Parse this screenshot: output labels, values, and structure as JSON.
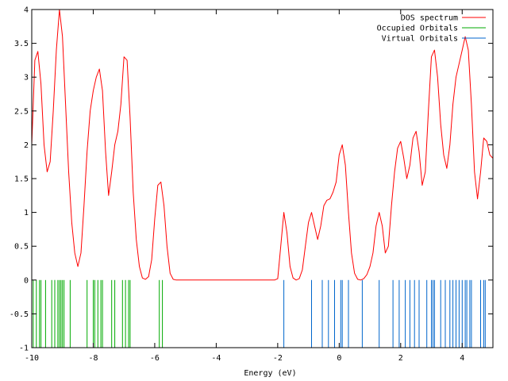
{
  "chart_data": {
    "type": "line",
    "title": "",
    "xlabel": "Energy (eV)",
    "ylabel": "",
    "xlim": [
      -10,
      5
    ],
    "ylim": [
      -1,
      4
    ],
    "grid": false,
    "legend_position": "top-right",
    "x_ticks": [
      -10,
      -8,
      -6,
      -4,
      -2,
      0,
      2,
      4
    ],
    "x_tick_labels": [
      "-10",
      "-8",
      "-6",
      "-4",
      "-2",
      "0",
      "2",
      "4"
    ],
    "y_ticks": [
      -1,
      -0.5,
      0,
      0.5,
      1,
      1.5,
      2,
      2.5,
      3,
      3.5,
      4
    ],
    "y_tick_labels": [
      "-1",
      "-0.5",
      "0",
      "0.5",
      "1",
      "1.5",
      "2",
      "2.5",
      "3",
      "3.5",
      "4"
    ],
    "series": [
      {
        "name": "DOS spectrum",
        "kind": "curve",
        "color": "#ff0000",
        "points": [
          [
            -10.0,
            2.0
          ],
          [
            -9.9,
            3.25
          ],
          [
            -9.8,
            3.38
          ],
          [
            -9.7,
            2.9
          ],
          [
            -9.6,
            2.0
          ],
          [
            -9.5,
            1.6
          ],
          [
            -9.4,
            1.75
          ],
          [
            -9.3,
            2.5
          ],
          [
            -9.2,
            3.4
          ],
          [
            -9.1,
            4.0
          ],
          [
            -9.0,
            3.6
          ],
          [
            -8.9,
            2.6
          ],
          [
            -8.8,
            1.6
          ],
          [
            -8.7,
            0.85
          ],
          [
            -8.6,
            0.4
          ],
          [
            -8.5,
            0.2
          ],
          [
            -8.4,
            0.4
          ],
          [
            -8.3,
            1.1
          ],
          [
            -8.2,
            1.9
          ],
          [
            -8.1,
            2.5
          ],
          [
            -8.0,
            2.8
          ],
          [
            -7.9,
            3.0
          ],
          [
            -7.8,
            3.12
          ],
          [
            -7.7,
            2.8
          ],
          [
            -7.6,
            1.9
          ],
          [
            -7.5,
            1.25
          ],
          [
            -7.4,
            1.6
          ],
          [
            -7.3,
            2.0
          ],
          [
            -7.2,
            2.2
          ],
          [
            -7.1,
            2.6
          ],
          [
            -7.0,
            3.3
          ],
          [
            -6.9,
            3.25
          ],
          [
            -6.8,
            2.4
          ],
          [
            -6.7,
            1.3
          ],
          [
            -6.6,
            0.6
          ],
          [
            -6.5,
            0.2
          ],
          [
            -6.4,
            0.03
          ],
          [
            -6.3,
            0.01
          ],
          [
            -6.2,
            0.05
          ],
          [
            -6.1,
            0.3
          ],
          [
            -6.0,
            0.9
          ],
          [
            -5.9,
            1.4
          ],
          [
            -5.8,
            1.45
          ],
          [
            -5.7,
            1.1
          ],
          [
            -5.6,
            0.5
          ],
          [
            -5.5,
            0.1
          ],
          [
            -5.4,
            0.01
          ],
          [
            -5.3,
            0.0
          ],
          [
            -4.0,
            0.0
          ],
          [
            -2.1,
            0.0
          ],
          [
            -2.0,
            0.02
          ],
          [
            -1.9,
            0.5
          ],
          [
            -1.8,
            1.0
          ],
          [
            -1.7,
            0.7
          ],
          [
            -1.6,
            0.2
          ],
          [
            -1.5,
            0.03
          ],
          [
            -1.4,
            0.0
          ],
          [
            -1.3,
            0.02
          ],
          [
            -1.2,
            0.15
          ],
          [
            -1.1,
            0.5
          ],
          [
            -1.0,
            0.85
          ],
          [
            -0.9,
            1.0
          ],
          [
            -0.8,
            0.8
          ],
          [
            -0.7,
            0.6
          ],
          [
            -0.6,
            0.8
          ],
          [
            -0.5,
            1.1
          ],
          [
            -0.4,
            1.18
          ],
          [
            -0.3,
            1.2
          ],
          [
            -0.2,
            1.3
          ],
          [
            -0.1,
            1.45
          ],
          [
            0.0,
            1.85
          ],
          [
            0.1,
            2.0
          ],
          [
            0.2,
            1.7
          ],
          [
            0.3,
            1.0
          ],
          [
            0.4,
            0.4
          ],
          [
            0.5,
            0.1
          ],
          [
            0.6,
            0.01
          ],
          [
            0.7,
            0.0
          ],
          [
            0.8,
            0.02
          ],
          [
            0.9,
            0.08
          ],
          [
            1.0,
            0.2
          ],
          [
            1.1,
            0.4
          ],
          [
            1.2,
            0.8
          ],
          [
            1.3,
            1.0
          ],
          [
            1.4,
            0.8
          ],
          [
            1.5,
            0.4
          ],
          [
            1.6,
            0.5
          ],
          [
            1.7,
            1.1
          ],
          [
            1.8,
            1.6
          ],
          [
            1.9,
            1.95
          ],
          [
            2.0,
            2.05
          ],
          [
            2.1,
            1.8
          ],
          [
            2.2,
            1.5
          ],
          [
            2.3,
            1.7
          ],
          [
            2.4,
            2.1
          ],
          [
            2.5,
            2.2
          ],
          [
            2.6,
            1.9
          ],
          [
            2.7,
            1.4
          ],
          [
            2.8,
            1.6
          ],
          [
            2.9,
            2.5
          ],
          [
            3.0,
            3.3
          ],
          [
            3.1,
            3.4
          ],
          [
            3.2,
            3.0
          ],
          [
            3.3,
            2.3
          ],
          [
            3.4,
            1.85
          ],
          [
            3.5,
            1.65
          ],
          [
            3.6,
            2.0
          ],
          [
            3.7,
            2.6
          ],
          [
            3.8,
            3.0
          ],
          [
            3.9,
            3.2
          ],
          [
            4.0,
            3.4
          ],
          [
            4.1,
            3.6
          ],
          [
            4.2,
            3.4
          ],
          [
            4.3,
            2.6
          ],
          [
            4.4,
            1.6
          ],
          [
            4.5,
            1.2
          ],
          [
            4.6,
            1.6
          ],
          [
            4.7,
            2.1
          ],
          [
            4.8,
            2.05
          ],
          [
            4.9,
            1.85
          ],
          [
            5.0,
            1.8
          ]
        ]
      },
      {
        "name": "Occupied Orbitals",
        "kind": "impulses",
        "color": "#00aa00",
        "x": [
          -9.95,
          -9.85,
          -9.75,
          -9.7,
          -9.55,
          -9.35,
          -9.25,
          -9.15,
          -9.1,
          -9.05,
          -9.0,
          -8.95,
          -8.75,
          -8.2,
          -8.0,
          -7.95,
          -7.85,
          -7.75,
          -7.7,
          -7.4,
          -7.3,
          -7.05,
          -6.95,
          -6.85,
          -6.8,
          -5.85,
          -5.75
        ]
      },
      {
        "name": "Virtual Orbitals",
        "kind": "impulses",
        "color": "#0066cc",
        "x": [
          -1.8,
          -0.9,
          -0.55,
          -0.35,
          -0.15,
          0.05,
          0.1,
          0.3,
          0.75,
          1.3,
          1.75,
          1.95,
          2.15,
          2.3,
          2.45,
          2.6,
          2.85,
          3.0,
          3.05,
          3.1,
          3.3,
          3.45,
          3.6,
          3.7,
          3.8,
          3.9,
          4.0,
          4.1,
          4.15,
          4.25,
          4.3,
          4.6,
          4.7,
          4.75
        ]
      }
    ]
  }
}
